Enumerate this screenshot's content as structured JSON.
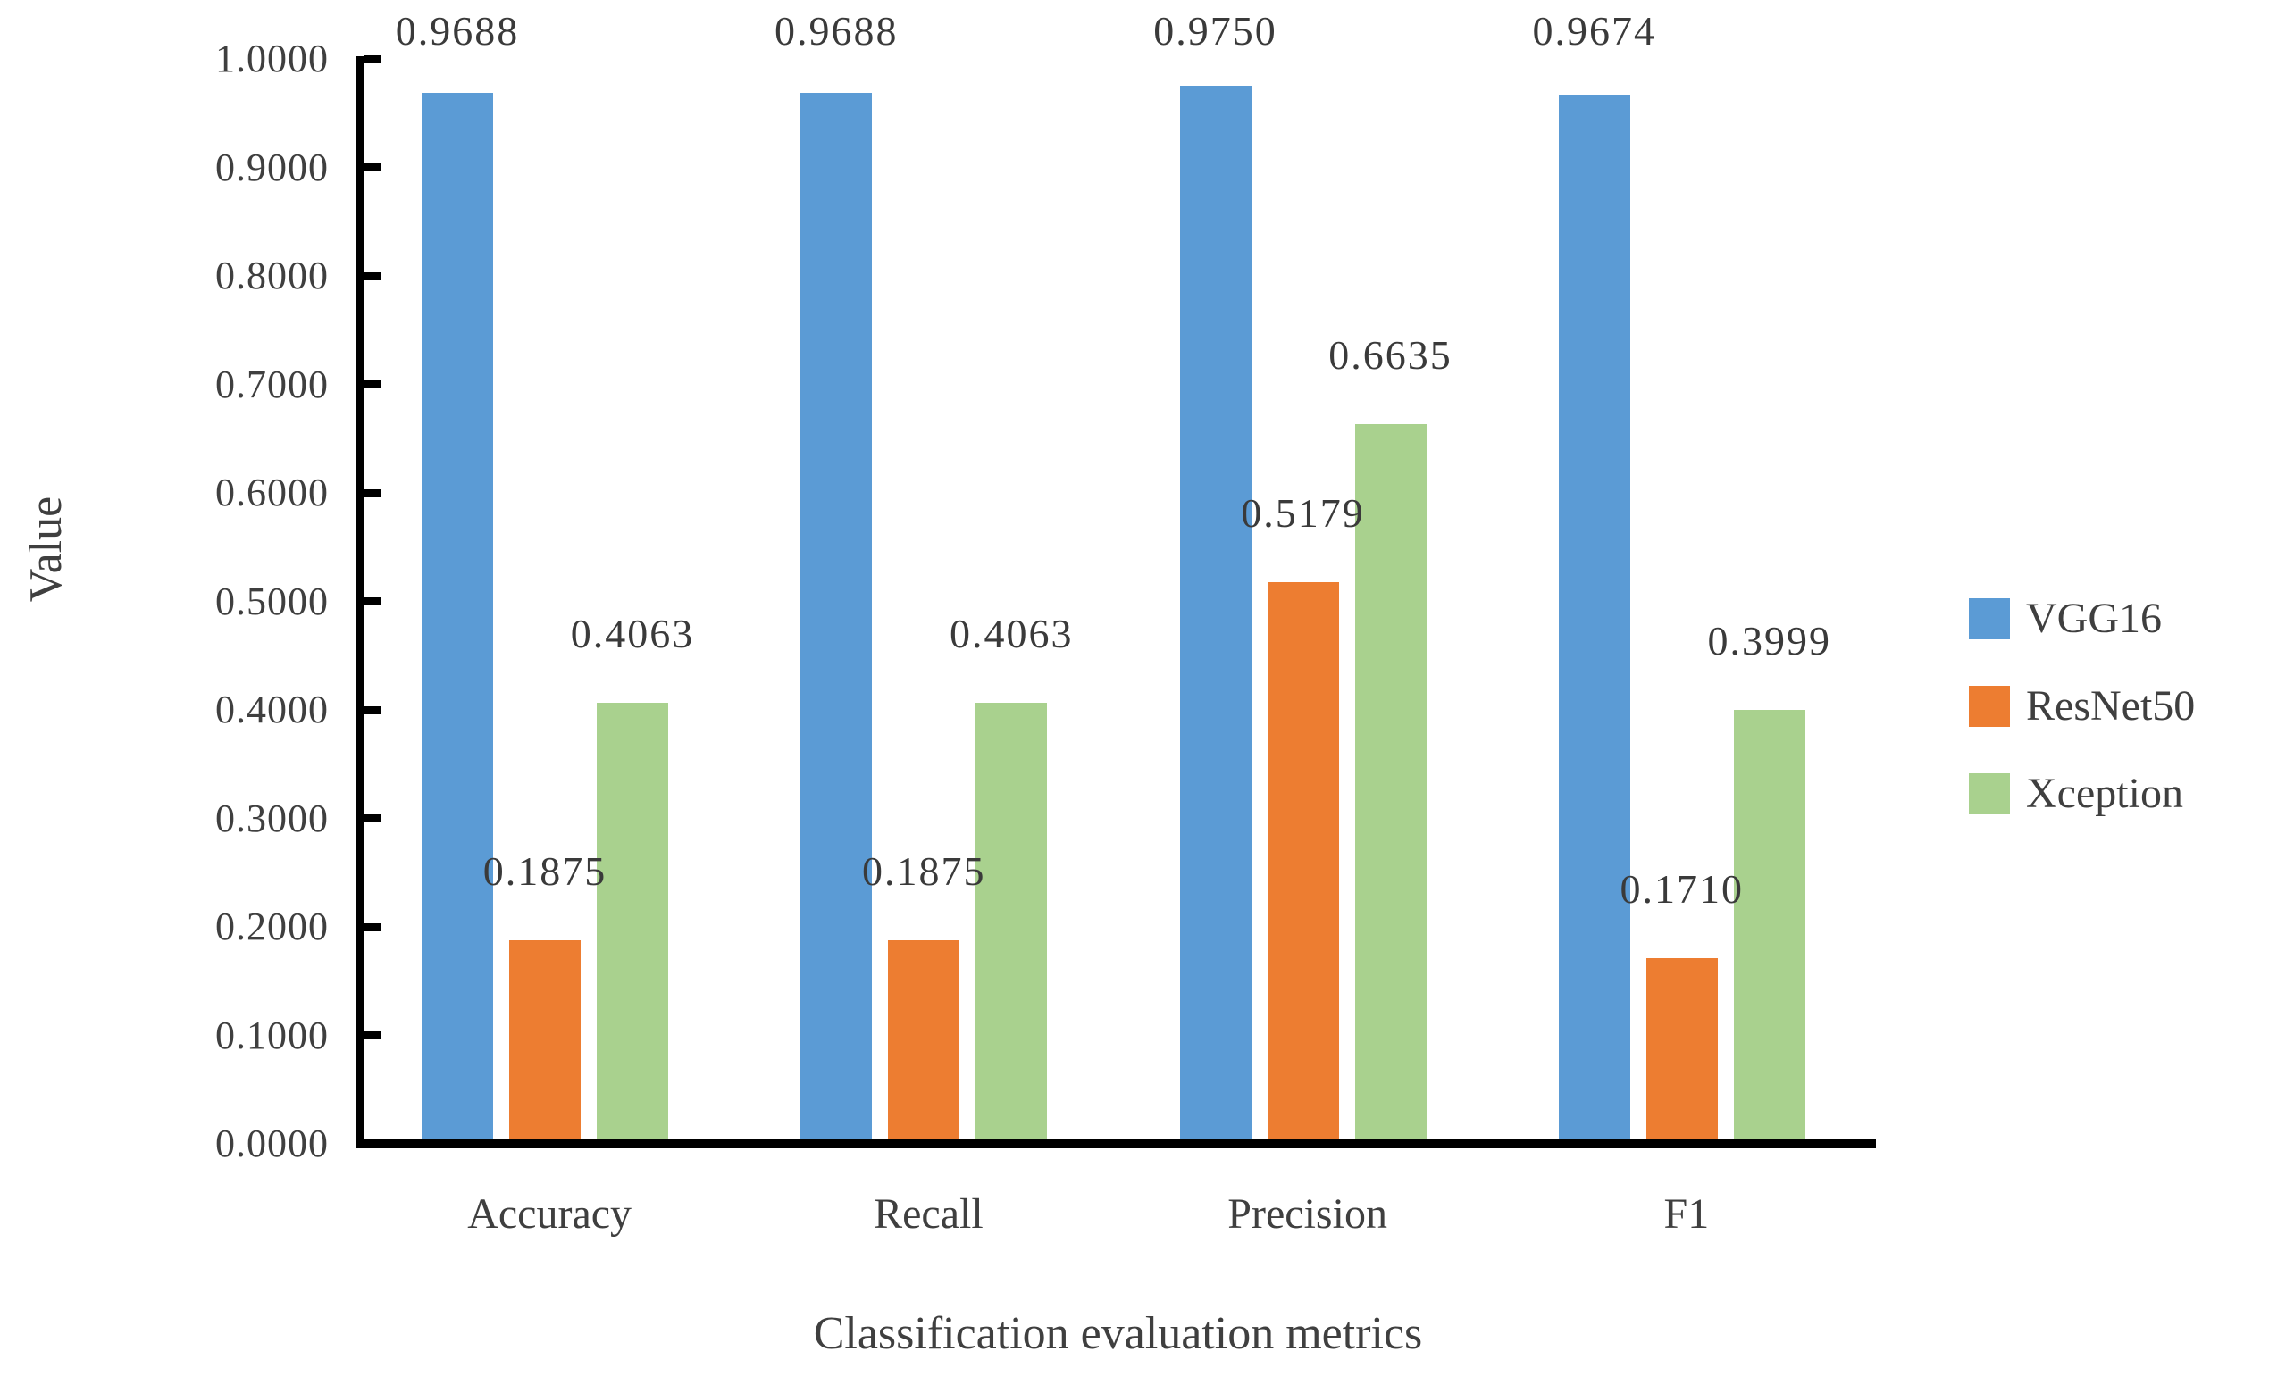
{
  "chart_data": {
    "type": "bar",
    "title": "",
    "xlabel": "Classification evaluation metrics",
    "ylabel": "Value",
    "categories": [
      "Accuracy",
      "Recall",
      "Precision",
      "F1"
    ],
    "series": [
      {
        "name": "VGG16",
        "color": "#5B9BD5",
        "values": [
          0.9688,
          0.9688,
          0.975,
          0.9674
        ],
        "labels": [
          "0.9688",
          "0.9688",
          "0.9750",
          "0.9674"
        ]
      },
      {
        "name": "ResNet50",
        "color": "#ED7D31",
        "values": [
          0.1875,
          0.1875,
          0.5179,
          0.171
        ],
        "labels": [
          "0.1875",
          "0.1875",
          "0.5179",
          "0.1710"
        ]
      },
      {
        "name": "Xception",
        "color": "#A9D18E",
        "values": [
          0.4063,
          0.4063,
          0.6635,
          0.3999
        ],
        "labels": [
          "0.4063",
          "0.4063",
          "0.6635",
          "0.3999"
        ]
      }
    ],
    "y_axis": {
      "min": 0,
      "max": 1,
      "step": 0.1,
      "tick_labels": [
        "0.0000",
        "0.1000",
        "0.2000",
        "0.3000",
        "0.4000",
        "0.5000",
        "0.6000",
        "0.7000",
        "0.8000",
        "0.9000",
        "1.0000"
      ]
    },
    "ylim": [
      0,
      1
    ],
    "grid": false,
    "legend": {
      "position": "right",
      "entries": [
        "VGG16",
        "ResNet50",
        "Xception"
      ]
    },
    "colors": {
      "axis": "#000000",
      "text": "#3f3f3f"
    }
  }
}
